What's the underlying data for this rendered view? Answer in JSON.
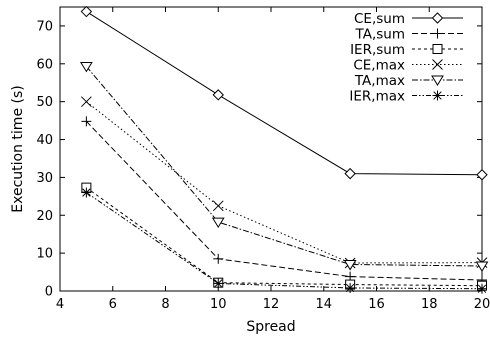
{
  "chart_data": {
    "type": "line",
    "xlabel": "Spread",
    "ylabel": "Execution time (s)",
    "xlim": [
      4,
      20
    ],
    "ylim": [
      0,
      75
    ],
    "xticks": [
      4,
      6,
      8,
      10,
      12,
      14,
      16,
      18,
      20
    ],
    "yticks": [
      0,
      10,
      20,
      30,
      40,
      50,
      60,
      70
    ],
    "grid": false,
    "legend_position": "top-right",
    "x": [
      5,
      10,
      15,
      20
    ],
    "series": [
      {
        "name": "CE,sum",
        "values": [
          73.8,
          51.8,
          31.0,
          30.7
        ],
        "marker": "diamond",
        "dash": "solid"
      },
      {
        "name": "TA,sum",
        "values": [
          44.8,
          8.5,
          3.8,
          2.9
        ],
        "marker": "plus",
        "dash": "long-dash"
      },
      {
        "name": "IER,sum",
        "values": [
          27.3,
          2.2,
          1.7,
          1.4
        ],
        "marker": "square",
        "dash": "short-dash"
      },
      {
        "name": "CE,max",
        "values": [
          50.0,
          22.5,
          7.4,
          7.5
        ],
        "marker": "x",
        "dash": "dotted"
      },
      {
        "name": "TA,max",
        "values": [
          59.3,
          18.2,
          7.0,
          6.6
        ],
        "marker": "triangle",
        "dash": "dash-dot"
      },
      {
        "name": "IER,max",
        "values": [
          26.0,
          2.0,
          0.8,
          0.6
        ],
        "marker": "star",
        "dash": "dash-dot-dot"
      }
    ]
  }
}
